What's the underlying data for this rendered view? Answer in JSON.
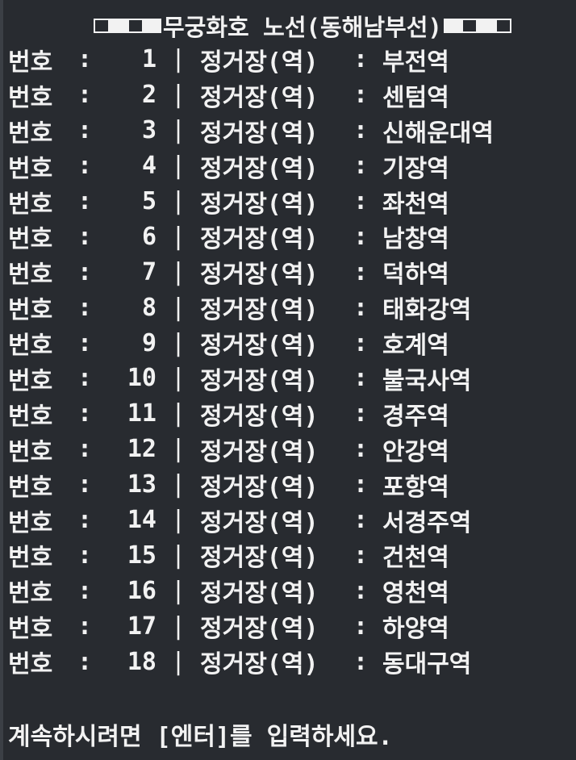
{
  "window": {
    "title": "무궁화호 노선(동해남부선)"
  },
  "colors": {
    "background": "#282b30",
    "text": "#f2f2f2"
  },
  "rows": [
    {
      "label": "번호",
      "sep": ":",
      "number": "1",
      "divider": "|",
      "kind": "정거장(역)",
      "sep2": ":",
      "station": "부전역"
    },
    {
      "label": "번호",
      "sep": ":",
      "number": "2",
      "divider": "|",
      "kind": "정거장(역)",
      "sep2": ":",
      "station": "센텀역"
    },
    {
      "label": "번호",
      "sep": ":",
      "number": "3",
      "divider": "|",
      "kind": "정거장(역)",
      "sep2": ":",
      "station": "신해운대역"
    },
    {
      "label": "번호",
      "sep": ":",
      "number": "4",
      "divider": "|",
      "kind": "정거장(역)",
      "sep2": ":",
      "station": "기장역"
    },
    {
      "label": "번호",
      "sep": ":",
      "number": "5",
      "divider": "|",
      "kind": "정거장(역)",
      "sep2": ":",
      "station": "좌천역"
    },
    {
      "label": "번호",
      "sep": ":",
      "number": "6",
      "divider": "|",
      "kind": "정거장(역)",
      "sep2": ":",
      "station": "남창역"
    },
    {
      "label": "번호",
      "sep": ":",
      "number": "7",
      "divider": "|",
      "kind": "정거장(역)",
      "sep2": ":",
      "station": "덕하역"
    },
    {
      "label": "번호",
      "sep": ":",
      "number": "8",
      "divider": "|",
      "kind": "정거장(역)",
      "sep2": ":",
      "station": "태화강역"
    },
    {
      "label": "번호",
      "sep": ":",
      "number": "9",
      "divider": "|",
      "kind": "정거장(역)",
      "sep2": ":",
      "station": "호계역"
    },
    {
      "label": "번호",
      "sep": ":",
      "number": "10",
      "divider": "|",
      "kind": "정거장(역)",
      "sep2": ":",
      "station": "불국사역"
    },
    {
      "label": "번호",
      "sep": ":",
      "number": "11",
      "divider": "|",
      "kind": "정거장(역)",
      "sep2": ":",
      "station": "경주역"
    },
    {
      "label": "번호",
      "sep": ":",
      "number": "12",
      "divider": "|",
      "kind": "정거장(역)",
      "sep2": ":",
      "station": "안강역"
    },
    {
      "label": "번호",
      "sep": ":",
      "number": "13",
      "divider": "|",
      "kind": "정거장(역)",
      "sep2": ":",
      "station": "포항역"
    },
    {
      "label": "번호",
      "sep": ":",
      "number": "14",
      "divider": "|",
      "kind": "정거장(역)",
      "sep2": ":",
      "station": "서경주역"
    },
    {
      "label": "번호",
      "sep": ":",
      "number": "15",
      "divider": "|",
      "kind": "정거장(역)",
      "sep2": ":",
      "station": "건천역"
    },
    {
      "label": "번호",
      "sep": ":",
      "number": "16",
      "divider": "|",
      "kind": "정거장(역)",
      "sep2": ":",
      "station": "영천역"
    },
    {
      "label": "번호",
      "sep": ":",
      "number": "17",
      "divider": "|",
      "kind": "정거장(역)",
      "sep2": ":",
      "station": "하양역"
    },
    {
      "label": "번호",
      "sep": ":",
      "number": "18",
      "divider": "|",
      "kind": "정거장(역)",
      "sep2": ":",
      "station": "동대구역"
    }
  ],
  "prompt": {
    "text": "계속하시려면 [엔터]를 입력하세요."
  }
}
